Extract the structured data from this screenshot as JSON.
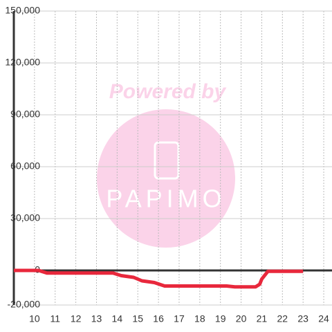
{
  "chart_data": {
    "type": "line",
    "annotations": [
      "Powered by",
      "PAPIMO"
    ],
    "x": [
      9,
      10.2,
      10.6,
      13.8,
      14.2,
      14.8,
      15.2,
      15.8,
      16.3,
      19.3,
      19.7,
      20.7,
      20.9,
      21.0,
      21.3,
      23
    ],
    "values": [
      0,
      0,
      -1500,
      -1500,
      -3000,
      -4000,
      -6000,
      -7000,
      -9000,
      -9000,
      -9500,
      -9500,
      -8000,
      -5000,
      -500,
      -500
    ],
    "color": "#e8283c",
    "xlim": [
      9,
      24.4
    ],
    "xticks": [
      10,
      11,
      12,
      13,
      14,
      15,
      16,
      17,
      18,
      19,
      20,
      21,
      22,
      23,
      24
    ],
    "ylim": [
      -20000,
      150000
    ],
    "yticks": [
      {
        "value": -20000,
        "label": "-20,000"
      },
      0,
      {
        "value": 30000,
        "label": "30,000"
      },
      {
        "value": 60000,
        "label": "60,000"
      },
      {
        "value": 90000,
        "label": "90,000"
      },
      {
        "value": 120000,
        "label": "120,000"
      },
      {
        "value": 150000,
        "label": "150,000"
      }
    ],
    "grid": true
  }
}
